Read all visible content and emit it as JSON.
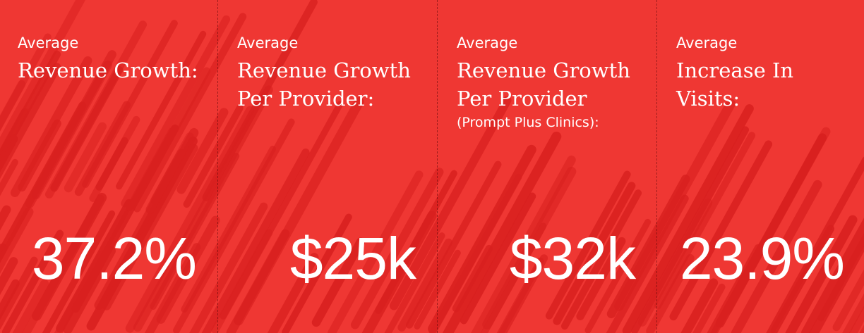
{
  "colors": {
    "background": "#ef3733",
    "stripe": "#d9201f",
    "divider": "#7a1515",
    "text": "#ffffff"
  },
  "stats": [
    {
      "prefix": "Average",
      "title_lines": [
        "Revenue Growth:"
      ],
      "note": "",
      "value": "37.2%"
    },
    {
      "prefix": "Average",
      "title_lines": [
        "Revenue Growth",
        "Per Provider:"
      ],
      "note": "",
      "value": "$25k"
    },
    {
      "prefix": "Average",
      "title_lines": [
        "Revenue Growth",
        "Per Provider"
      ],
      "note": "(Prompt Plus Clinics):",
      "value": "$32k"
    },
    {
      "prefix": "Average",
      "title_lines": [
        "Increase In",
        "Visits:"
      ],
      "note": "",
      "value": "23.9%"
    }
  ]
}
